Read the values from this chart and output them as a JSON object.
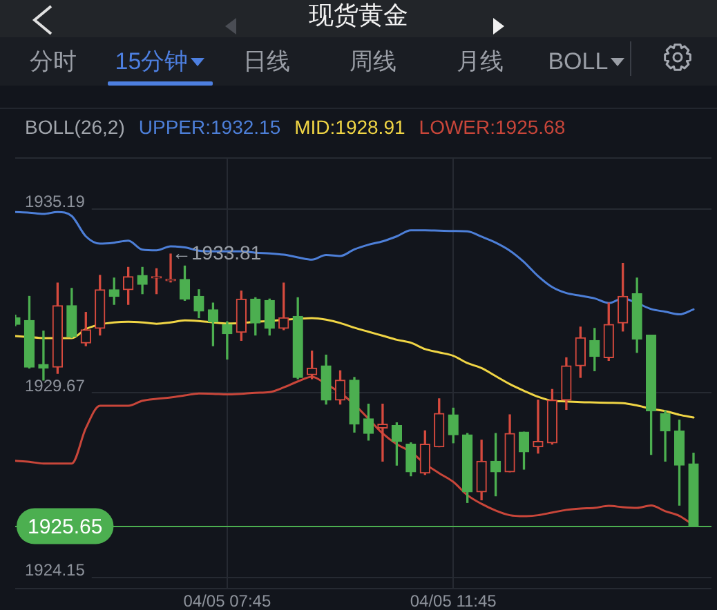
{
  "chart_data": {
    "type": "candlestick",
    "title": "现货黄金",
    "annotations": [
      "分时",
      "15分钟",
      "日线",
      "周线",
      "月线",
      "BOLL",
      {
        "text": "←1933.81",
        "y": 1933.81
      }
    ],
    "categories": [
      null,
      null,
      null,
      null,
      null,
      null,
      null,
      null,
      null,
      null,
      null,
      null,
      null,
      null,
      null,
      "04/05 07:45",
      null,
      null,
      null,
      null,
      null,
      null,
      null,
      null,
      null,
      null,
      null,
      null,
      null,
      null,
      null,
      "04/05 11:45",
      null,
      null,
      null,
      null,
      null,
      null,
      null,
      null,
      null,
      null,
      null,
      null,
      null,
      null,
      null,
      null,
      null
    ],
    "ohlc": [
      [
        1931.9,
        1931.98,
        1931.66,
        1931.7
      ],
      [
        1931.82,
        1932.54,
        1930.39,
        1930.42
      ],
      [
        1930.5,
        1931.5,
        1930.03,
        1930.39
      ],
      [
        1930.42,
        1932.94,
        1930.23,
        1932.26
      ],
      [
        1932.26,
        1932.78,
        1931.3,
        1931.34
      ],
      [
        1931.14,
        1932.06,
        1931.06,
        1931.54
      ],
      [
        1931.58,
        1933.17,
        1931.38,
        1932.74
      ],
      [
        1932.74,
        1933.09,
        1932.3,
        1932.54
      ],
      [
        1932.74,
        1933.41,
        1932.3,
        1933.13
      ],
      [
        1933.17,
        1933.41,
        1932.62,
        1932.9
      ],
      [
        1933.09,
        1933.37,
        1932.62,
        1933.13
      ],
      [
        1933.01,
        1933.81,
        1932.97,
        1933.05
      ],
      [
        1933.05,
        1933.45,
        1932.42,
        1932.46
      ],
      [
        1932.54,
        1932.74,
        1931.9,
        1932.1
      ],
      [
        1932.14,
        1932.34,
        1931.06,
        1931.78
      ],
      [
        1931.7,
        1931.78,
        1930.66,
        1931.42
      ],
      [
        1931.46,
        1932.7,
        1931.22,
        1932.46
      ],
      [
        1932.46,
        1932.5,
        1931.38,
        1931.74
      ],
      [
        1932.42,
        1932.46,
        1931.38,
        1931.58
      ],
      [
        1931.58,
        1932.94,
        1931.54,
        1931.9
      ],
      [
        1931.94,
        1932.5,
        1930.07,
        1930.11
      ],
      [
        1930.19,
        1930.9,
        1930.07,
        1930.39
      ],
      [
        1930.46,
        1930.78,
        1929.31,
        1929.43
      ],
      [
        1929.43,
        1930.31,
        1929.31,
        1930.03
      ],
      [
        1930.03,
        1930.11,
        1928.47,
        1928.71
      ],
      [
        1928.87,
        1929.31,
        1928.23,
        1928.43
      ],
      [
        1928.59,
        1929.31,
        1927.6,
        1928.71
      ],
      [
        1928.67,
        1928.75,
        1927.48,
        1928.19
      ],
      [
        1928.11,
        1928.15,
        1927.16,
        1927.28
      ],
      [
        1927.24,
        1928.51,
        1927.2,
        1928.11
      ],
      [
        1928.03,
        1929.47,
        1928.03,
        1929.03
      ],
      [
        1928.99,
        1929.19,
        1928.15,
        1928.39
      ],
      [
        1928.39,
        1928.43,
        1926.36,
        1926.68
      ],
      [
        1926.68,
        1928.23,
        1926.44,
        1927.6
      ],
      [
        1927.6,
        1928.43,
        1926.56,
        1927.28
      ],
      [
        1927.28,
        1928.99,
        1927.28,
        1928.43
      ],
      [
        1928.47,
        1928.47,
        1927.36,
        1927.88
      ],
      [
        1928.03,
        1929.43,
        1927.84,
        1928.19
      ],
      [
        1928.15,
        1929.75,
        1928.11,
        1929.43
      ],
      [
        1929.43,
        1930.7,
        1929.15,
        1930.46
      ],
      [
        1930.46,
        1931.62,
        1930.11,
        1931.3
      ],
      [
        1931.22,
        1931.58,
        1930.31,
        1930.74
      ],
      [
        1930.7,
        1932.34,
        1930.62,
        1931.7
      ],
      [
        1931.74,
        1933.53,
        1931.5,
        1932.54
      ],
      [
        1932.62,
        1933.09,
        1930.86,
        1931.26
      ],
      [
        1931.38,
        1931.38,
        1927.8,
        1929.11
      ],
      [
        1929.03,
        1929.11,
        1927.6,
        1928.51
      ],
      [
        1928.51,
        1928.83,
        1926.28,
        1927.48
      ],
      [
        1927.52,
        1927.84,
        1925.65,
        1925.65
      ]
    ],
    "colors": [
      "#4caf50",
      "#4caf50",
      "#4caf50",
      "#d64a3e",
      "#4caf50",
      "#d64a3e",
      "#d64a3e",
      "#4caf50",
      "#d64a3e",
      "#4caf50",
      "#d64a3e",
      "#d64a3e",
      "#4caf50",
      "#4caf50",
      "#4caf50",
      "#4caf50",
      "#d64a3e",
      "#4caf50",
      "#4caf50",
      "#d64a3e",
      "#4caf50",
      "#d64a3e",
      "#4caf50",
      "#d64a3e",
      "#4caf50",
      "#4caf50",
      "#d64a3e",
      "#4caf50",
      "#4caf50",
      "#d64a3e",
      "#d64a3e",
      "#4caf50",
      "#4caf50",
      "#d64a3e",
      "#4caf50",
      "#d64a3e",
      "#4caf50",
      "#d64a3e",
      "#d64a3e",
      "#d64a3e",
      "#d64a3e",
      "#4caf50",
      "#d64a3e",
      "#d64a3e",
      "#4caf50",
      "#4caf50",
      "#4caf50",
      "#4caf50",
      "#4caf50"
    ],
    "series": [
      {
        "name": "UPPER:1932.15",
        "type": "line",
        "color": "#4d7fd8",
        "values": [
          1935.07,
          1935.05,
          1935.01,
          1935.07,
          1934.95,
          1934.34,
          1934.12,
          1934.15,
          1934.21,
          1933.94,
          1933.92,
          1934.04,
          1934.01,
          1933.91,
          1933.89,
          1933.89,
          1933.89,
          1933.85,
          1933.83,
          1933.79,
          1933.71,
          1933.64,
          1933.78,
          1933.75,
          1933.95,
          1934.09,
          1934.19,
          1934.34,
          1934.52,
          1934.52,
          1934.51,
          1934.5,
          1934.49,
          1934.33,
          1934.15,
          1933.91,
          1933.57,
          1933.15,
          1932.82,
          1932.64,
          1932.56,
          1932.48,
          1932.34,
          1932.48,
          1932.34,
          1932.16,
          1932.08,
          1932.0,
          1932.15
        ]
      },
      {
        "name": "MID:1928.91",
        "type": "line",
        "color": "#f0d545",
        "values": [
          1931.35,
          1931.32,
          1931.29,
          1931.29,
          1931.29,
          1931.56,
          1931.7,
          1931.76,
          1931.78,
          1931.76,
          1931.72,
          1931.76,
          1931.82,
          1931.8,
          1931.76,
          1931.73,
          1931.74,
          1931.78,
          1931.8,
          1931.84,
          1931.87,
          1931.89,
          1931.84,
          1931.74,
          1931.6,
          1931.48,
          1931.36,
          1931.24,
          1931.15,
          1930.96,
          1930.86,
          1930.76,
          1930.54,
          1930.39,
          1930.15,
          1929.91,
          1929.71,
          1929.53,
          1929.41,
          1929.39,
          1929.37,
          1929.36,
          1929.35,
          1929.34,
          1929.27,
          1929.17,
          1929.1,
          1928.99,
          1928.91
        ]
      },
      {
        "name": "LOWER:1925.68",
        "type": "line",
        "color": "#c9463a",
        "values": [
          1927.61,
          1927.58,
          1927.53,
          1927.53,
          1927.53,
          1928.59,
          1929.26,
          1929.26,
          1929.26,
          1929.41,
          1929.47,
          1929.51,
          1929.57,
          1929.63,
          1929.62,
          1929.6,
          1929.62,
          1929.65,
          1929.67,
          1929.81,
          1929.99,
          1930.13,
          1929.91,
          1929.65,
          1929.3,
          1928.87,
          1928.43,
          1928.11,
          1927.88,
          1927.52,
          1927.24,
          1926.98,
          1926.58,
          1926.32,
          1926.12,
          1925.98,
          1925.95,
          1925.98,
          1926.06,
          1926.14,
          1926.18,
          1926.2,
          1926.26,
          1926.22,
          1926.2,
          1926.27,
          1926.1,
          1925.96,
          1925.68
        ]
      }
    ],
    "legend_title": "BOLL(26,2)",
    "legend": "top left",
    "ylim": [
      1923.8,
      1936.7
    ],
    "yticks": [
      1935.19,
      1929.67,
      1924.15
    ],
    "grid": true,
    "ref_lines": [
      {
        "axis": "y",
        "value": 1925.65,
        "label": "1925.65",
        "color": "#4caf50"
      }
    ]
  }
}
